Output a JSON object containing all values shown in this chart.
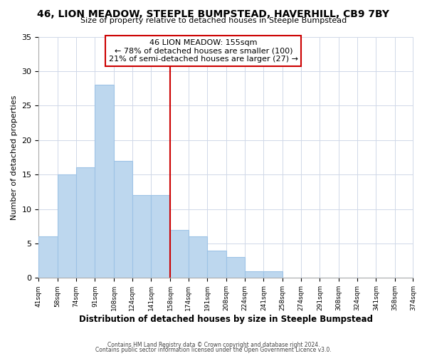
{
  "title1": "46, LION MEADOW, STEEPLE BUMPSTEAD, HAVERHILL, CB9 7BY",
  "title2": "Size of property relative to detached houses in Steeple Bumpstead",
  "xlabel": "Distribution of detached houses by size in Steeple Bumpstead",
  "ylabel": "Number of detached properties",
  "bar_edges": [
    41,
    58,
    74,
    91,
    108,
    124,
    141,
    158,
    174,
    191,
    208,
    224,
    241,
    258,
    274,
    291,
    308,
    324,
    341,
    358,
    374
  ],
  "bar_heights": [
    6,
    15,
    16,
    28,
    17,
    12,
    12,
    7,
    6,
    4,
    3,
    1,
    1,
    0,
    0,
    0,
    0,
    0,
    0,
    0
  ],
  "bar_color": "#bdd7ee",
  "bar_edgecolor": "#9dc3e6",
  "reference_line_x": 158,
  "reference_line_color": "#cc0000",
  "annotation_title": "46 LION MEADOW: 155sqm",
  "annotation_line1": "← 78% of detached houses are smaller (100)",
  "annotation_line2": "21% of semi-detached houses are larger (27) →",
  "annotation_box_edgecolor": "#cc0000",
  "annotation_box_facecolor": "#ffffff",
  "ylim": [
    0,
    35
  ],
  "yticks": [
    0,
    5,
    10,
    15,
    20,
    25,
    30,
    35
  ],
  "xlim": [
    41,
    374
  ],
  "tick_labels": [
    "41sqm",
    "58sqm",
    "74sqm",
    "91sqm",
    "108sqm",
    "124sqm",
    "141sqm",
    "158sqm",
    "174sqm",
    "191sqm",
    "208sqm",
    "224sqm",
    "241sqm",
    "258sqm",
    "274sqm",
    "291sqm",
    "308sqm",
    "324sqm",
    "341sqm",
    "358sqm",
    "374sqm"
  ],
  "footnote1": "Contains HM Land Registry data © Crown copyright and database right 2024.",
  "footnote2": "Contains public sector information licensed under the Open Government Licence v3.0.",
  "background_color": "#ffffff",
  "grid_color": "#d0d8e8"
}
